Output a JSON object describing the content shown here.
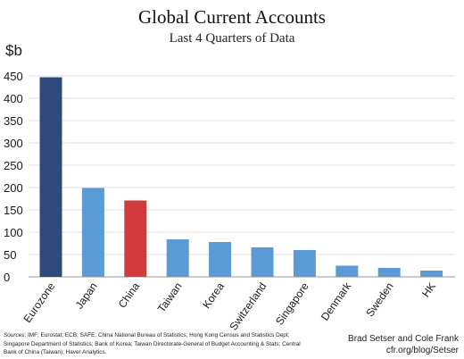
{
  "header": {
    "title": "Global Current Accounts",
    "subtitle": "Last 4 Quarters of Data"
  },
  "chart_data": {
    "type": "bar",
    "ylabel": "$b",
    "xlabel": "",
    "ylim": [
      0,
      500
    ],
    "yticks": [
      0,
      50,
      100,
      150,
      200,
      250,
      300,
      350,
      400,
      450
    ],
    "grid": true,
    "categories": [
      "Eurozone",
      "Japan",
      "China",
      "Taiwan",
      "Korea",
      "Switzerland",
      "Singapore",
      "Denmark",
      "Sweden",
      "HK"
    ],
    "values": [
      447,
      199,
      171,
      84,
      78,
      66,
      60,
      25,
      20,
      14
    ],
    "colors": [
      "#2e4a7d",
      "#5b9bd5",
      "#d13b3b",
      "#5b9bd5",
      "#5b9bd5",
      "#5b9bd5",
      "#5b9bd5",
      "#5b9bd5",
      "#5b9bd5",
      "#5b9bd5"
    ]
  },
  "footer": {
    "sources_label": "Sources",
    "sources_text": ": IMF; Eurostat; ECB; SAFE; China National Bureau of Statistics; Hong Kong Census and Statistics Dept; Singapore Department of Statistics; Bank of Korea; Taiwan Directorate-General of Budget Accounting & Stats; Central Bank of China (Taiwan);  Haver Analytics.",
    "credit_authors": "Brad Setser and Cole Frank",
    "credit_url": "cfr.org/blog/Setser"
  }
}
